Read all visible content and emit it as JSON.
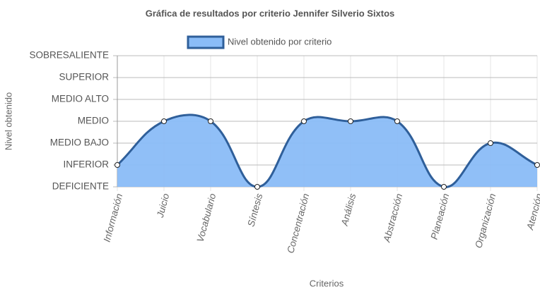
{
  "chart_data": {
    "type": "line",
    "title": "Gráfica de resultados por criterio Jennifer Silverio Sixtos",
    "x_label": "Criterios",
    "y_label": "Nivel obtenido",
    "categories": [
      "Información",
      "Juicio",
      "Vocabulario",
      "Síntesis",
      "Concentración",
      "Análisis",
      "Abstracción",
      "Planeación",
      "Organización",
      "Atención"
    ],
    "series": [
      {
        "name": "Nivel obtenido por criterio",
        "color": "#2f5f9a",
        "fill": "#8abcf7",
        "values": [
          1,
          3,
          3,
          0,
          3,
          3,
          3,
          0,
          2,
          1
        ]
      }
    ],
    "ylim": [
      0,
      6
    ],
    "yticks": [
      {
        "value": 0,
        "label": "DEFICIENTE"
      },
      {
        "value": 1,
        "label": "INFERIOR"
      },
      {
        "value": 2,
        "label": "MEDIO BAJO"
      },
      {
        "value": 3,
        "label": "MEDIO"
      },
      {
        "value": 4,
        "label": "MEDIO ALTO"
      },
      {
        "value": 5,
        "label": "SUPERIOR"
      },
      {
        "value": 6,
        "label": "SOBRESALIENTE"
      }
    ],
    "grid": true
  }
}
